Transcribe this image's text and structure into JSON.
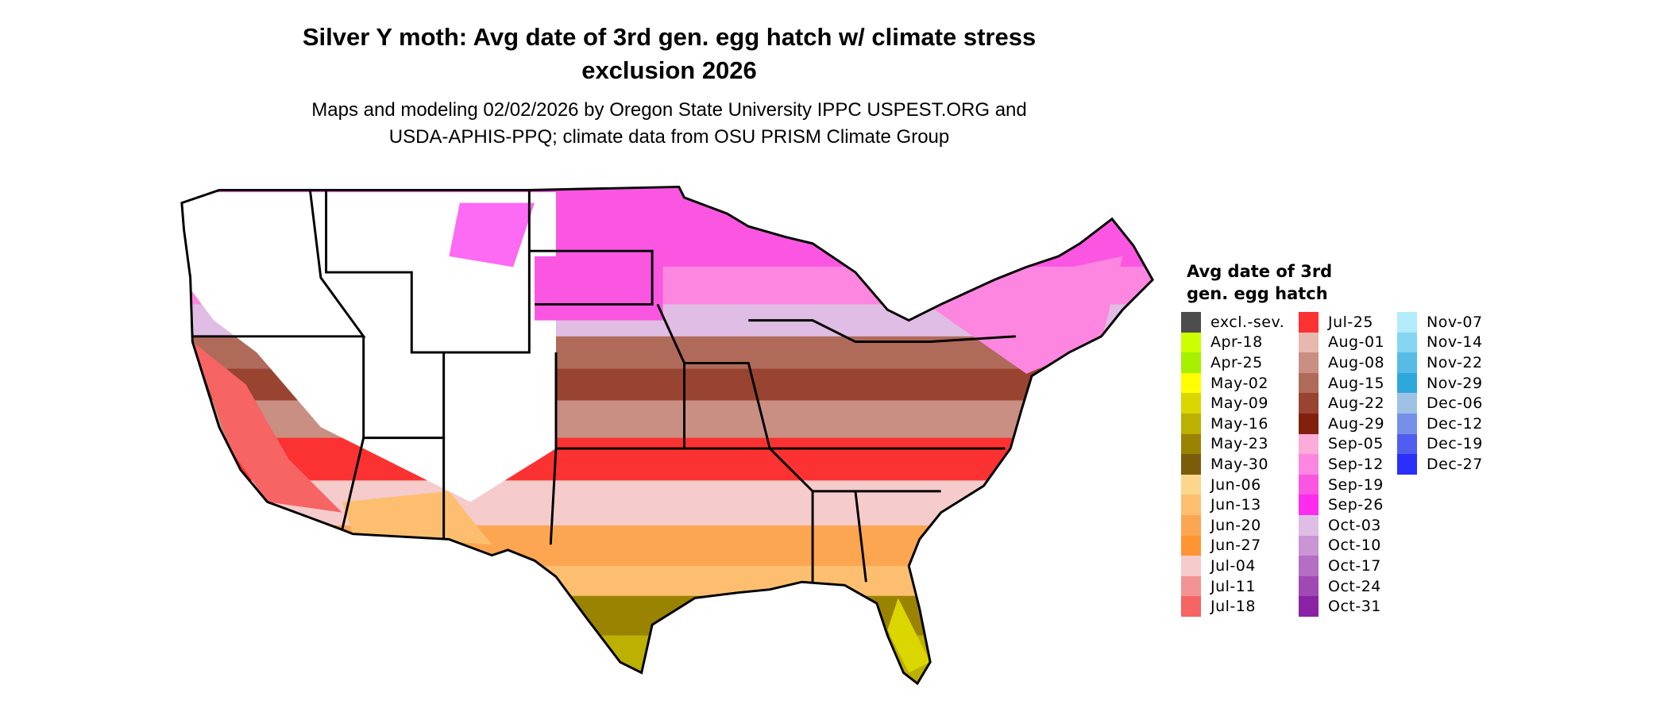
{
  "title_line1": "Silver Y moth: Avg date of 3rd gen. egg hatch w/ climate stress",
  "title_line2": "exclusion 2026",
  "subtitle_line1": "Maps and modeling 02/02/2026 by Oregon State University IPPC USPEST.ORG and",
  "subtitle_line2": "USDA-APHIS-PPQ; climate data from OSU PRISM Climate Group",
  "legend": {
    "title_line1": "Avg date of 3rd",
    "title_line2": "gen. egg hatch",
    "columns": [
      [
        {
          "label": "excl.-sev.",
          "color": "#4d4d4d"
        },
        {
          "label": "Apr-18",
          "color": "#ccff00"
        },
        {
          "label": "Apr-25",
          "color": "#a6f000"
        },
        {
          "label": "May-02",
          "color": "#ffff00"
        },
        {
          "label": "May-09",
          "color": "#dcd600"
        },
        {
          "label": "May-16",
          "color": "#bcb000"
        },
        {
          "label": "May-23",
          "color": "#9a8300"
        },
        {
          "label": "May-30",
          "color": "#7a5c0a"
        },
        {
          "label": "Jun-06",
          "color": "#fdd68e"
        },
        {
          "label": "Jun-13",
          "color": "#fdbf6f"
        },
        {
          "label": "Jun-20",
          "color": "#fca651"
        },
        {
          "label": "Jun-27",
          "color": "#fd9632"
        },
        {
          "label": "Jul-04",
          "color": "#f6cbcb"
        },
        {
          "label": "Jul-11",
          "color": "#f29494"
        },
        {
          "label": "Jul-18",
          "color": "#f66464"
        }
      ],
      [
        {
          "label": "Jul-25",
          "color": "#fc3232"
        },
        {
          "label": "Aug-01",
          "color": "#e6b8ae"
        },
        {
          "label": "Aug-08",
          "color": "#c98f82"
        },
        {
          "label": "Aug-15",
          "color": "#b06a5a"
        },
        {
          "label": "Aug-22",
          "color": "#994331"
        },
        {
          "label": "Aug-29",
          "color": "#82200e"
        },
        {
          "label": "Sep-05",
          "color": "#fcacd8"
        },
        {
          "label": "Sep-12",
          "color": "#fc86e0"
        },
        {
          "label": "Sep-19",
          "color": "#fb56e2"
        },
        {
          "label": "Sep-26",
          "color": "#fc2bee"
        },
        {
          "label": "Oct-03",
          "color": "#e0bde4"
        },
        {
          "label": "Oct-10",
          "color": "#c995d4"
        },
        {
          "label": "Oct-17",
          "color": "#b46ec4"
        },
        {
          "label": "Oct-24",
          "color": "#a048b4"
        },
        {
          "label": "Oct-31",
          "color": "#8a22a6"
        }
      ],
      [
        {
          "label": "Nov-07",
          "color": "#b2ebfc"
        },
        {
          "label": "Nov-14",
          "color": "#86d5f2"
        },
        {
          "label": "Nov-22",
          "color": "#56bce6"
        },
        {
          "label": "Nov-29",
          "color": "#2ea8dc"
        },
        {
          "label": "Dec-06",
          "color": "#9dc2e6"
        },
        {
          "label": "Dec-12",
          "color": "#7690ea"
        },
        {
          "label": "Dec-19",
          "color": "#4f5ef0"
        },
        {
          "label": "Dec-27",
          "color": "#2a2ffa"
        }
      ]
    ]
  }
}
